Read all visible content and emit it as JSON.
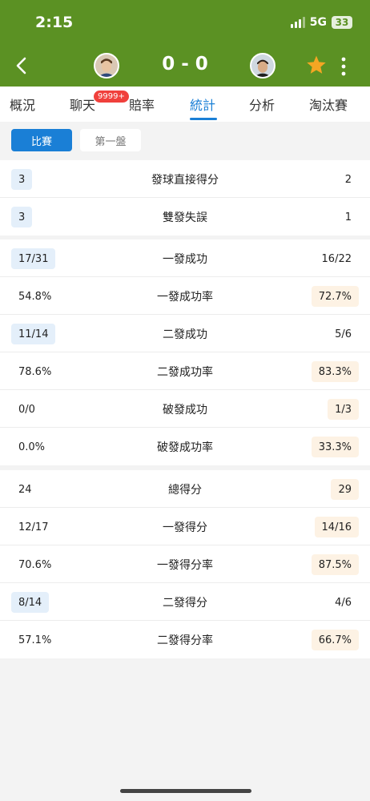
{
  "status_bar": {
    "time": "2:15",
    "network": "5G",
    "battery": "33"
  },
  "header": {
    "score": "0 - 0"
  },
  "tabs": [
    {
      "label": "概況",
      "active": false
    },
    {
      "label": "聊天",
      "active": false,
      "badge": "9999+"
    },
    {
      "label": "賠率",
      "active": false
    },
    {
      "label": "統計",
      "active": true
    },
    {
      "label": "分析",
      "active": false
    },
    {
      "label": "淘汰賽",
      "active": false
    }
  ],
  "segments": [
    {
      "label": "比賽",
      "active": true
    },
    {
      "label": "第一盤",
      "active": false
    }
  ],
  "stats": {
    "group1": [
      {
        "label": "發球直接得分",
        "home": "3",
        "away": "2",
        "home_hl": true,
        "away_hl": false
      },
      {
        "label": "雙發失誤",
        "home": "3",
        "away": "1",
        "home_hl": true,
        "away_hl": false
      }
    ],
    "group2": [
      {
        "label": "一發成功",
        "home": "17/31",
        "away": "16/22",
        "home_hl": true,
        "away_hl": false
      },
      {
        "label": "一發成功率",
        "home": "54.8%",
        "away": "72.7%",
        "home_hl": false,
        "away_hl": true
      },
      {
        "label": "二發成功",
        "home": "11/14",
        "away": "5/6",
        "home_hl": true,
        "away_hl": false
      },
      {
        "label": "二發成功率",
        "home": "78.6%",
        "away": "83.3%",
        "home_hl": false,
        "away_hl": true
      },
      {
        "label": "破發成功",
        "home": "0/0",
        "away": "1/3",
        "home_hl": false,
        "away_hl": true
      },
      {
        "label": "破發成功率",
        "home": "0.0%",
        "away": "33.3%",
        "home_hl": false,
        "away_hl": true
      }
    ],
    "group3": [
      {
        "label": "總得分",
        "home": "24",
        "away": "29",
        "home_hl": false,
        "away_hl": true
      },
      {
        "label": "一發得分",
        "home": "12/17",
        "away": "14/16",
        "home_hl": false,
        "away_hl": true
      },
      {
        "label": "一發得分率",
        "home": "70.6%",
        "away": "87.5%",
        "home_hl": false,
        "away_hl": true
      },
      {
        "label": "二發得分",
        "home": "8/14",
        "away": "4/6",
        "home_hl": true,
        "away_hl": false
      },
      {
        "label": "二發得分率",
        "home": "57.1%",
        "away": "66.7%",
        "home_hl": false,
        "away_hl": true
      }
    ]
  },
  "icons": {
    "back": "chevron-left-icon",
    "favorite": "star-icon",
    "more": "more-vertical-icon",
    "home_player": "player-avatar-icon",
    "away_player": "player-avatar-icon"
  },
  "colors": {
    "header_green": "#5b9123",
    "accent_blue": "#1a7fd6",
    "home_highlight": "#e4effa",
    "away_highlight": "#fdf2e4",
    "star": "#f5a623",
    "badge_red": "#f0403c"
  }
}
